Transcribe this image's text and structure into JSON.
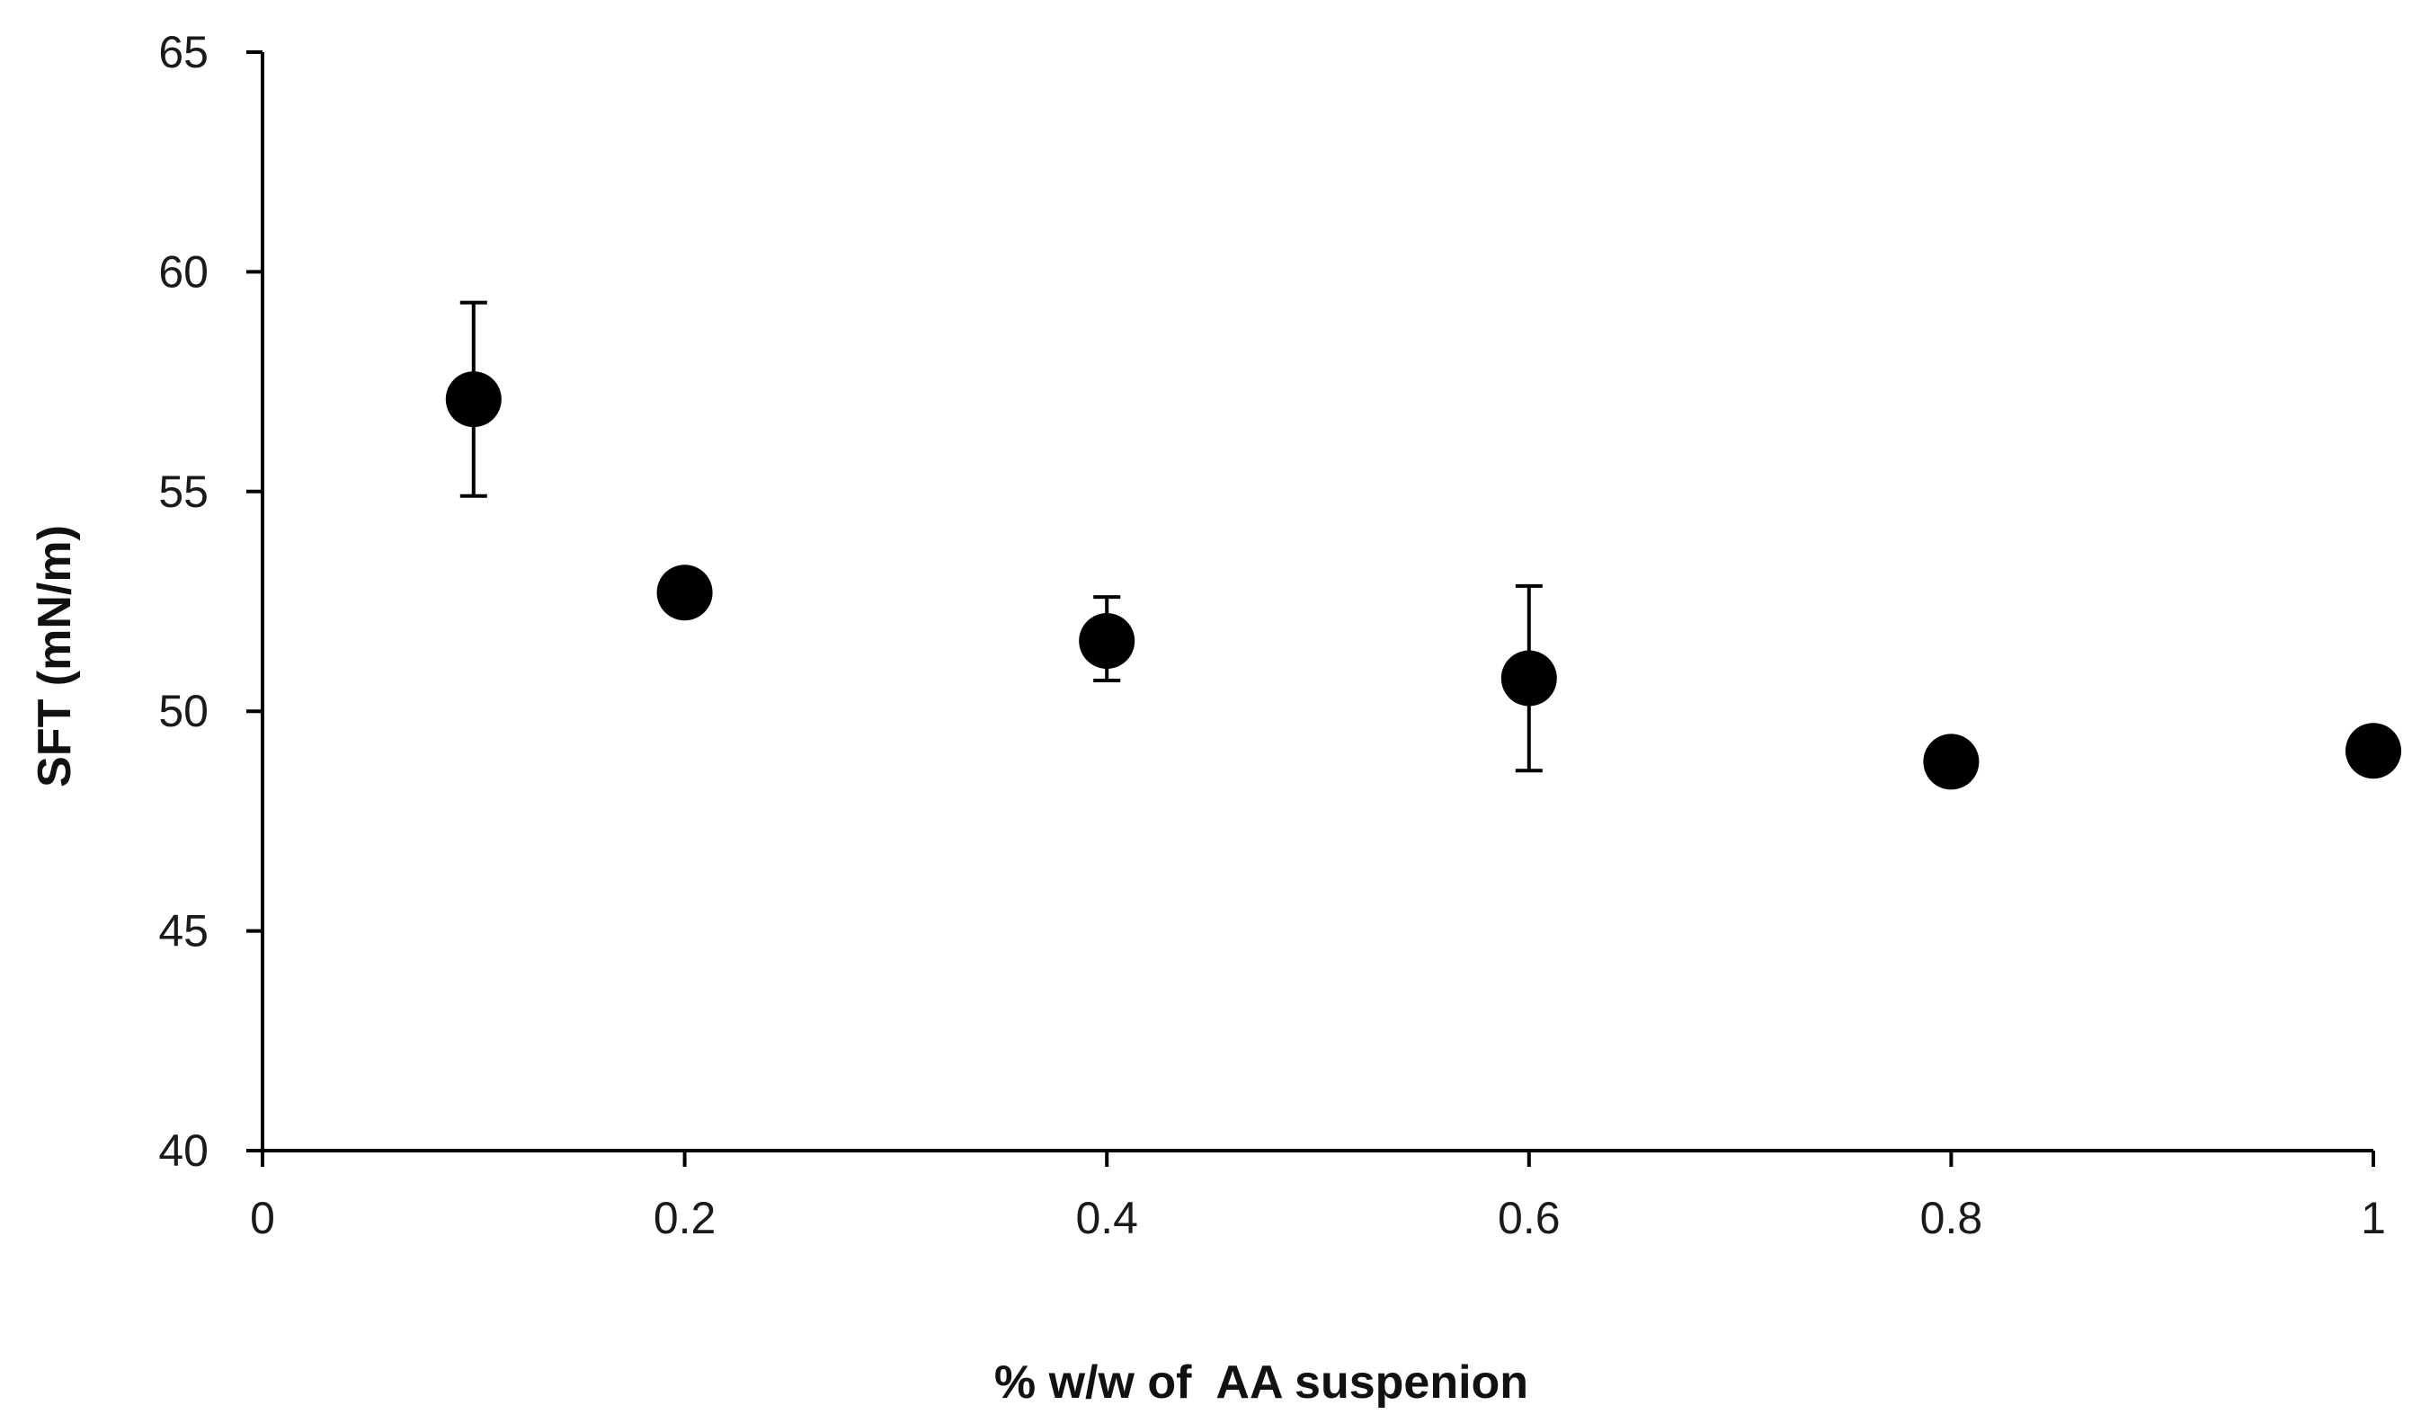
{
  "chart_data": {
    "type": "scatter",
    "title": "",
    "xlabel": "% w/w of  AA suspenion",
    "ylabel": "SFT (mN/m)",
    "xlim": [
      0,
      1
    ],
    "ylim": [
      40,
      65
    ],
    "x_ticks": [
      0,
      0.2,
      0.4,
      0.6,
      0.8,
      1
    ],
    "x_tick_labels": [
      "0",
      "0.2",
      "0.4",
      "0.6",
      "0.8",
      "1"
    ],
    "y_ticks": [
      40,
      45,
      50,
      55,
      60,
      65
    ],
    "y_tick_labels": [
      "40",
      "45",
      "50",
      "55",
      "60",
      "65"
    ],
    "grid": false,
    "legend": "none",
    "marker_color": "#000000",
    "series": [
      {
        "points": [
          {
            "x": 0.1,
            "y": 57.1,
            "err_low": 54.9,
            "err_high": 59.3
          },
          {
            "x": 0.2,
            "y": 52.7,
            "err_low": null,
            "err_high": null
          },
          {
            "x": 0.4,
            "y": 51.6,
            "err_low": 50.7,
            "err_high": 52.6
          },
          {
            "x": 0.6,
            "y": 50.75,
            "err_low": 48.65,
            "err_high": 52.85
          },
          {
            "x": 0.8,
            "y": 48.85,
            "err_low": null,
            "err_high": null
          },
          {
            "x": 1.0,
            "y": 49.1,
            "err_low": null,
            "err_high": null
          }
        ]
      }
    ]
  }
}
